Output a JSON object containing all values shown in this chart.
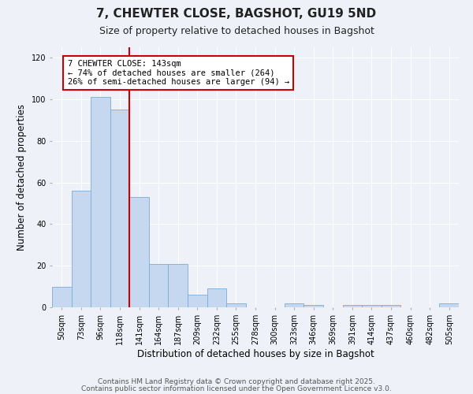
{
  "title": "7, CHEWTER CLOSE, BAGSHOT, GU19 5ND",
  "subtitle": "Size of property relative to detached houses in Bagshot",
  "xlabel": "Distribution of detached houses by size in Bagshot",
  "ylabel": "Number of detached properties",
  "bar_labels": [
    "50sqm",
    "73sqm",
    "96sqm",
    "118sqm",
    "141sqm",
    "164sqm",
    "187sqm",
    "209sqm",
    "232sqm",
    "255sqm",
    "278sqm",
    "300sqm",
    "323sqm",
    "346sqm",
    "369sqm",
    "391sqm",
    "414sqm",
    "437sqm",
    "460sqm",
    "482sqm",
    "505sqm"
  ],
  "bar_values": [
    10,
    56,
    101,
    95,
    53,
    21,
    21,
    6,
    9,
    2,
    0,
    0,
    2,
    1,
    0,
    1,
    1,
    1,
    0,
    0,
    2
  ],
  "bar_color": "#c5d8f0",
  "bar_edge_color": "#7aacd6",
  "vline_index": 4,
  "vline_color": "#cc0000",
  "annotation_title": "7 CHEWTER CLOSE: 143sqm",
  "annotation_line1": "← 74% of detached houses are smaller (264)",
  "annotation_line2": "26% of semi-detached houses are larger (94) →",
  "annotation_box_color": "#ffffff",
  "annotation_box_edge": "#cc0000",
  "ylim": [
    0,
    125
  ],
  "yticks": [
    0,
    20,
    40,
    60,
    80,
    100,
    120
  ],
  "footer1": "Contains HM Land Registry data © Crown copyright and database right 2025.",
  "footer2": "Contains public sector information licensed under the Open Government Licence v3.0.",
  "bg_color": "#eef2f8",
  "plot_bg_color": "#eef2f8",
  "title_fontsize": 11,
  "subtitle_fontsize": 9,
  "axis_label_fontsize": 8.5,
  "tick_fontsize": 7,
  "footer_fontsize": 6.5,
  "annotation_fontsize": 7.5
}
